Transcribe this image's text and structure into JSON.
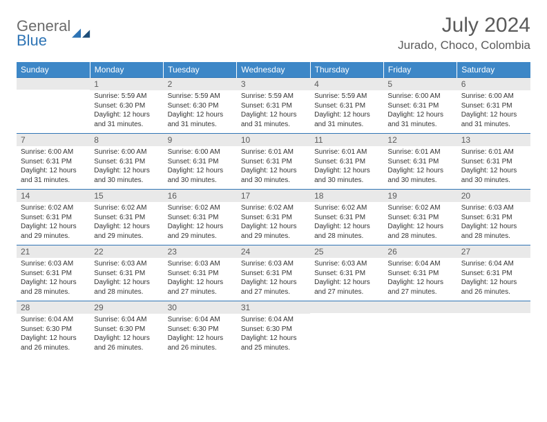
{
  "brand": {
    "line1": "General",
    "line2": "Blue"
  },
  "colors": {
    "header_bg": "#3d87c7",
    "header_text": "#ffffff",
    "rule": "#2e74b5",
    "daynum_bg": "#e9e9e9",
    "text_gray": "#5a5a5a",
    "body_text": "#333333",
    "logo_gray": "#6b6b6b",
    "logo_blue": "#2e74b5"
  },
  "title": "July 2024",
  "location": "Jurado, Choco, Colombia",
  "day_headers": [
    "Sunday",
    "Monday",
    "Tuesday",
    "Wednesday",
    "Thursday",
    "Friday",
    "Saturday"
  ],
  "weeks": [
    [
      null,
      {
        "n": "1",
        "sr": "Sunrise: 5:59 AM",
        "ss": "Sunset: 6:30 PM",
        "dl1": "Daylight: 12 hours",
        "dl2": "and 31 minutes."
      },
      {
        "n": "2",
        "sr": "Sunrise: 5:59 AM",
        "ss": "Sunset: 6:30 PM",
        "dl1": "Daylight: 12 hours",
        "dl2": "and 31 minutes."
      },
      {
        "n": "3",
        "sr": "Sunrise: 5:59 AM",
        "ss": "Sunset: 6:31 PM",
        "dl1": "Daylight: 12 hours",
        "dl2": "and 31 minutes."
      },
      {
        "n": "4",
        "sr": "Sunrise: 5:59 AM",
        "ss": "Sunset: 6:31 PM",
        "dl1": "Daylight: 12 hours",
        "dl2": "and 31 minutes."
      },
      {
        "n": "5",
        "sr": "Sunrise: 6:00 AM",
        "ss": "Sunset: 6:31 PM",
        "dl1": "Daylight: 12 hours",
        "dl2": "and 31 minutes."
      },
      {
        "n": "6",
        "sr": "Sunrise: 6:00 AM",
        "ss": "Sunset: 6:31 PM",
        "dl1": "Daylight: 12 hours",
        "dl2": "and 31 minutes."
      }
    ],
    [
      {
        "n": "7",
        "sr": "Sunrise: 6:00 AM",
        "ss": "Sunset: 6:31 PM",
        "dl1": "Daylight: 12 hours",
        "dl2": "and 31 minutes."
      },
      {
        "n": "8",
        "sr": "Sunrise: 6:00 AM",
        "ss": "Sunset: 6:31 PM",
        "dl1": "Daylight: 12 hours",
        "dl2": "and 30 minutes."
      },
      {
        "n": "9",
        "sr": "Sunrise: 6:00 AM",
        "ss": "Sunset: 6:31 PM",
        "dl1": "Daylight: 12 hours",
        "dl2": "and 30 minutes."
      },
      {
        "n": "10",
        "sr": "Sunrise: 6:01 AM",
        "ss": "Sunset: 6:31 PM",
        "dl1": "Daylight: 12 hours",
        "dl2": "and 30 minutes."
      },
      {
        "n": "11",
        "sr": "Sunrise: 6:01 AM",
        "ss": "Sunset: 6:31 PM",
        "dl1": "Daylight: 12 hours",
        "dl2": "and 30 minutes."
      },
      {
        "n": "12",
        "sr": "Sunrise: 6:01 AM",
        "ss": "Sunset: 6:31 PM",
        "dl1": "Daylight: 12 hours",
        "dl2": "and 30 minutes."
      },
      {
        "n": "13",
        "sr": "Sunrise: 6:01 AM",
        "ss": "Sunset: 6:31 PM",
        "dl1": "Daylight: 12 hours",
        "dl2": "and 30 minutes."
      }
    ],
    [
      {
        "n": "14",
        "sr": "Sunrise: 6:02 AM",
        "ss": "Sunset: 6:31 PM",
        "dl1": "Daylight: 12 hours",
        "dl2": "and 29 minutes."
      },
      {
        "n": "15",
        "sr": "Sunrise: 6:02 AM",
        "ss": "Sunset: 6:31 PM",
        "dl1": "Daylight: 12 hours",
        "dl2": "and 29 minutes."
      },
      {
        "n": "16",
        "sr": "Sunrise: 6:02 AM",
        "ss": "Sunset: 6:31 PM",
        "dl1": "Daylight: 12 hours",
        "dl2": "and 29 minutes."
      },
      {
        "n": "17",
        "sr": "Sunrise: 6:02 AM",
        "ss": "Sunset: 6:31 PM",
        "dl1": "Daylight: 12 hours",
        "dl2": "and 29 minutes."
      },
      {
        "n": "18",
        "sr": "Sunrise: 6:02 AM",
        "ss": "Sunset: 6:31 PM",
        "dl1": "Daylight: 12 hours",
        "dl2": "and 28 minutes."
      },
      {
        "n": "19",
        "sr": "Sunrise: 6:02 AM",
        "ss": "Sunset: 6:31 PM",
        "dl1": "Daylight: 12 hours",
        "dl2": "and 28 minutes."
      },
      {
        "n": "20",
        "sr": "Sunrise: 6:03 AM",
        "ss": "Sunset: 6:31 PM",
        "dl1": "Daylight: 12 hours",
        "dl2": "and 28 minutes."
      }
    ],
    [
      {
        "n": "21",
        "sr": "Sunrise: 6:03 AM",
        "ss": "Sunset: 6:31 PM",
        "dl1": "Daylight: 12 hours",
        "dl2": "and 28 minutes."
      },
      {
        "n": "22",
        "sr": "Sunrise: 6:03 AM",
        "ss": "Sunset: 6:31 PM",
        "dl1": "Daylight: 12 hours",
        "dl2": "and 28 minutes."
      },
      {
        "n": "23",
        "sr": "Sunrise: 6:03 AM",
        "ss": "Sunset: 6:31 PM",
        "dl1": "Daylight: 12 hours",
        "dl2": "and 27 minutes."
      },
      {
        "n": "24",
        "sr": "Sunrise: 6:03 AM",
        "ss": "Sunset: 6:31 PM",
        "dl1": "Daylight: 12 hours",
        "dl2": "and 27 minutes."
      },
      {
        "n": "25",
        "sr": "Sunrise: 6:03 AM",
        "ss": "Sunset: 6:31 PM",
        "dl1": "Daylight: 12 hours",
        "dl2": "and 27 minutes."
      },
      {
        "n": "26",
        "sr": "Sunrise: 6:04 AM",
        "ss": "Sunset: 6:31 PM",
        "dl1": "Daylight: 12 hours",
        "dl2": "and 27 minutes."
      },
      {
        "n": "27",
        "sr": "Sunrise: 6:04 AM",
        "ss": "Sunset: 6:31 PM",
        "dl1": "Daylight: 12 hours",
        "dl2": "and 26 minutes."
      }
    ],
    [
      {
        "n": "28",
        "sr": "Sunrise: 6:04 AM",
        "ss": "Sunset: 6:30 PM",
        "dl1": "Daylight: 12 hours",
        "dl2": "and 26 minutes."
      },
      {
        "n": "29",
        "sr": "Sunrise: 6:04 AM",
        "ss": "Sunset: 6:30 PM",
        "dl1": "Daylight: 12 hours",
        "dl2": "and 26 minutes."
      },
      {
        "n": "30",
        "sr": "Sunrise: 6:04 AM",
        "ss": "Sunset: 6:30 PM",
        "dl1": "Daylight: 12 hours",
        "dl2": "and 26 minutes."
      },
      {
        "n": "31",
        "sr": "Sunrise: 6:04 AM",
        "ss": "Sunset: 6:30 PM",
        "dl1": "Daylight: 12 hours",
        "dl2": "and 25 minutes."
      },
      null,
      null,
      null
    ]
  ]
}
